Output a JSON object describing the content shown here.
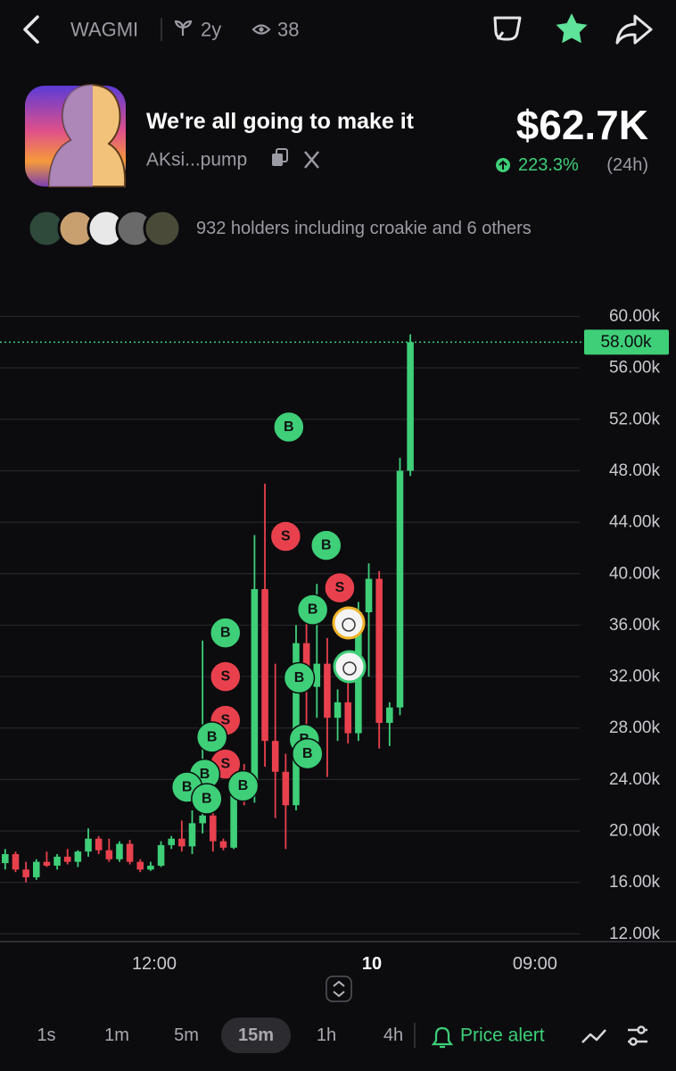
{
  "header": {
    "ticker": "WAGMI",
    "age": "2y",
    "views": "38"
  },
  "token": {
    "name": "We're all going to make it",
    "address": "AKsi...pump",
    "market_cap": "$62.7K",
    "change": "223.3%",
    "period": "(24h)",
    "holders": "932 holders including croakie and 6 others"
  },
  "chart_data": {
    "type": "candlestick",
    "up_color": "#3ecf78",
    "down_color": "#e8414d",
    "grid": true,
    "open": [
      17500,
      18200,
      17000,
      16400,
      17600,
      17300,
      18000,
      17600,
      18400,
      19400,
      18500,
      17800,
      19000,
      17600,
      17000,
      17300,
      18900,
      19400,
      18800,
      20600,
      21200,
      19200,
      18700,
      24600,
      23800,
      38800,
      27000,
      24600,
      22000,
      34600,
      31200,
      33000,
      28800,
      30000,
      27600,
      37000,
      39600,
      28400,
      29600,
      48000
    ],
    "high": [
      18600,
      18400,
      17600,
      17800,
      18400,
      18200,
      18600,
      18500,
      20200,
      19600,
      19400,
      19200,
      19300,
      17800,
      17600,
      19200,
      19600,
      20800,
      21600,
      34800,
      21600,
      19400,
      24800,
      25200,
      43000,
      47000,
      33000,
      26000,
      36000,
      36200,
      39200,
      35000,
      31000,
      31600,
      37800,
      40800,
      40200,
      30000,
      49000,
      58600
    ],
    "low": [
      17000,
      16800,
      16000,
      16200,
      17200,
      17000,
      17400,
      17200,
      18000,
      18200,
      17600,
      17600,
      17400,
      16800,
      16900,
      17200,
      18600,
      18400,
      18200,
      19800,
      18400,
      18500,
      18600,
      22000,
      22200,
      25000,
      21000,
      18600,
      21600,
      28000,
      28800,
      24200,
      27000,
      26800,
      27000,
      32000,
      26400,
      26600,
      29000,
      47600
    ],
    "close": [
      18200,
      17000,
      16400,
      17600,
      17300,
      18000,
      17600,
      18400,
      19400,
      18500,
      17800,
      19000,
      17600,
      17000,
      17300,
      18900,
      19400,
      18800,
      20600,
      21200,
      19200,
      18700,
      24600,
      23800,
      38800,
      27000,
      24600,
      22000,
      34600,
      31200,
      33000,
      28800,
      30000,
      27600,
      37000,
      39600,
      28400,
      29600,
      48000,
      58000
    ],
    "xlim": [
      -0.5,
      55.3
    ],
    "xticks": [
      {
        "value": 14.35,
        "label": "12:00"
      },
      {
        "value": 35.3,
        "label": "10"
      },
      {
        "value": 51.0,
        "label": "09:00"
      }
    ],
    "ylim": [
      11400,
      61700
    ],
    "yticks": [
      {
        "value": 12000,
        "label": "12.00k"
      },
      {
        "value": 16000,
        "label": "16.00k"
      },
      {
        "value": 20000,
        "label": "20.00k"
      },
      {
        "value": 24000,
        "label": "24.00k"
      },
      {
        "value": 28000,
        "label": "28.00k"
      },
      {
        "value": 32000,
        "label": "32.00k"
      },
      {
        "value": 36000,
        "label": "36.00k"
      },
      {
        "value": 40000,
        "label": "40.00k"
      },
      {
        "value": 44000,
        "label": "44.00k"
      },
      {
        "value": 48000,
        "label": "48.00k"
      },
      {
        "value": 52000,
        "label": "52.00k"
      },
      {
        "value": 56000,
        "label": "56.00k"
      },
      {
        "value": 60000,
        "label": "60.00k"
      }
    ],
    "last_price": {
      "value": 58000,
      "label": "58.00k"
    },
    "trades": {
      "labels": [
        "B",
        "S",
        "S",
        "B",
        "S",
        "B",
        "B",
        "B",
        "B",
        "B",
        "S",
        "B",
        "S",
        "B",
        "B",
        "B",
        "B"
      ],
      "index": [
        21.2,
        21.2,
        21.2,
        19.9,
        21.2,
        19.2,
        17.5,
        19.4,
        22.9,
        27.3,
        27.0,
        30.9,
        32.2,
        29.6,
        28.3,
        28.8,
        29.1
      ],
      "price": [
        35400,
        32000,
        28600,
        27300,
        25200,
        24400,
        23400,
        22500,
        23500,
        51400,
        42900,
        42200,
        38900,
        37200,
        31900,
        27100,
        26000
      ]
    }
  },
  "timeframes": [
    "1s",
    "1m",
    "5m",
    "15m",
    "1h",
    "4h"
  ],
  "selected_timeframe": 3,
  "price_alert": "Price alert"
}
